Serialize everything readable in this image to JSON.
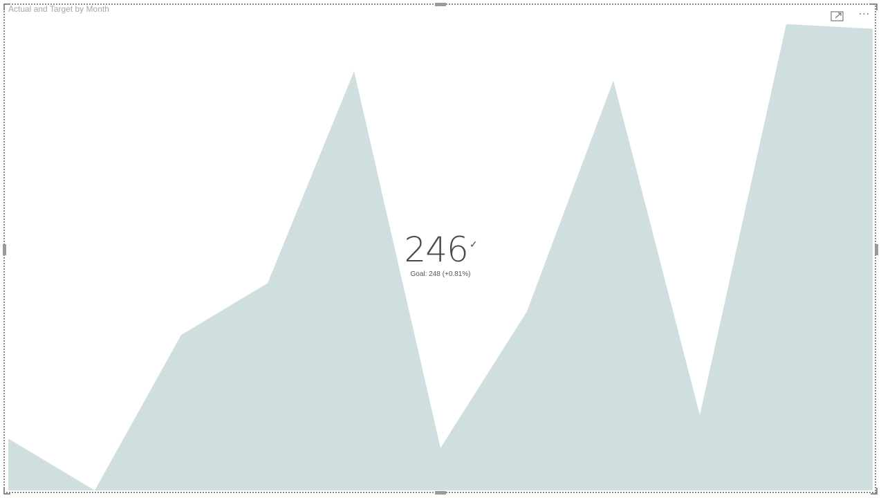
{
  "visual": {
    "title": "Actual  and Target by Month",
    "more_label": "···",
    "focus_icon": "focus-mode-icon"
  },
  "kpi": {
    "value": "246",
    "indicator": "✓",
    "goal_text": "Goal: 248 (+0.81%)"
  },
  "colors": {
    "area_fill": "#cfdfdf",
    "border": "#8a8a8a"
  },
  "chart_data": {
    "type": "area",
    "title": "Actual  and Target by Month",
    "series": [
      {
        "values": [
          0.11,
          0.0,
          0.33,
          0.44,
          0.89,
          0.09,
          0.38,
          0.87,
          0.16,
          0.99,
          0.98
        ]
      }
    ],
    "ylim": [
      0,
      1
    ],
    "grid": false,
    "legend": "none",
    "axes_visible": false
  }
}
